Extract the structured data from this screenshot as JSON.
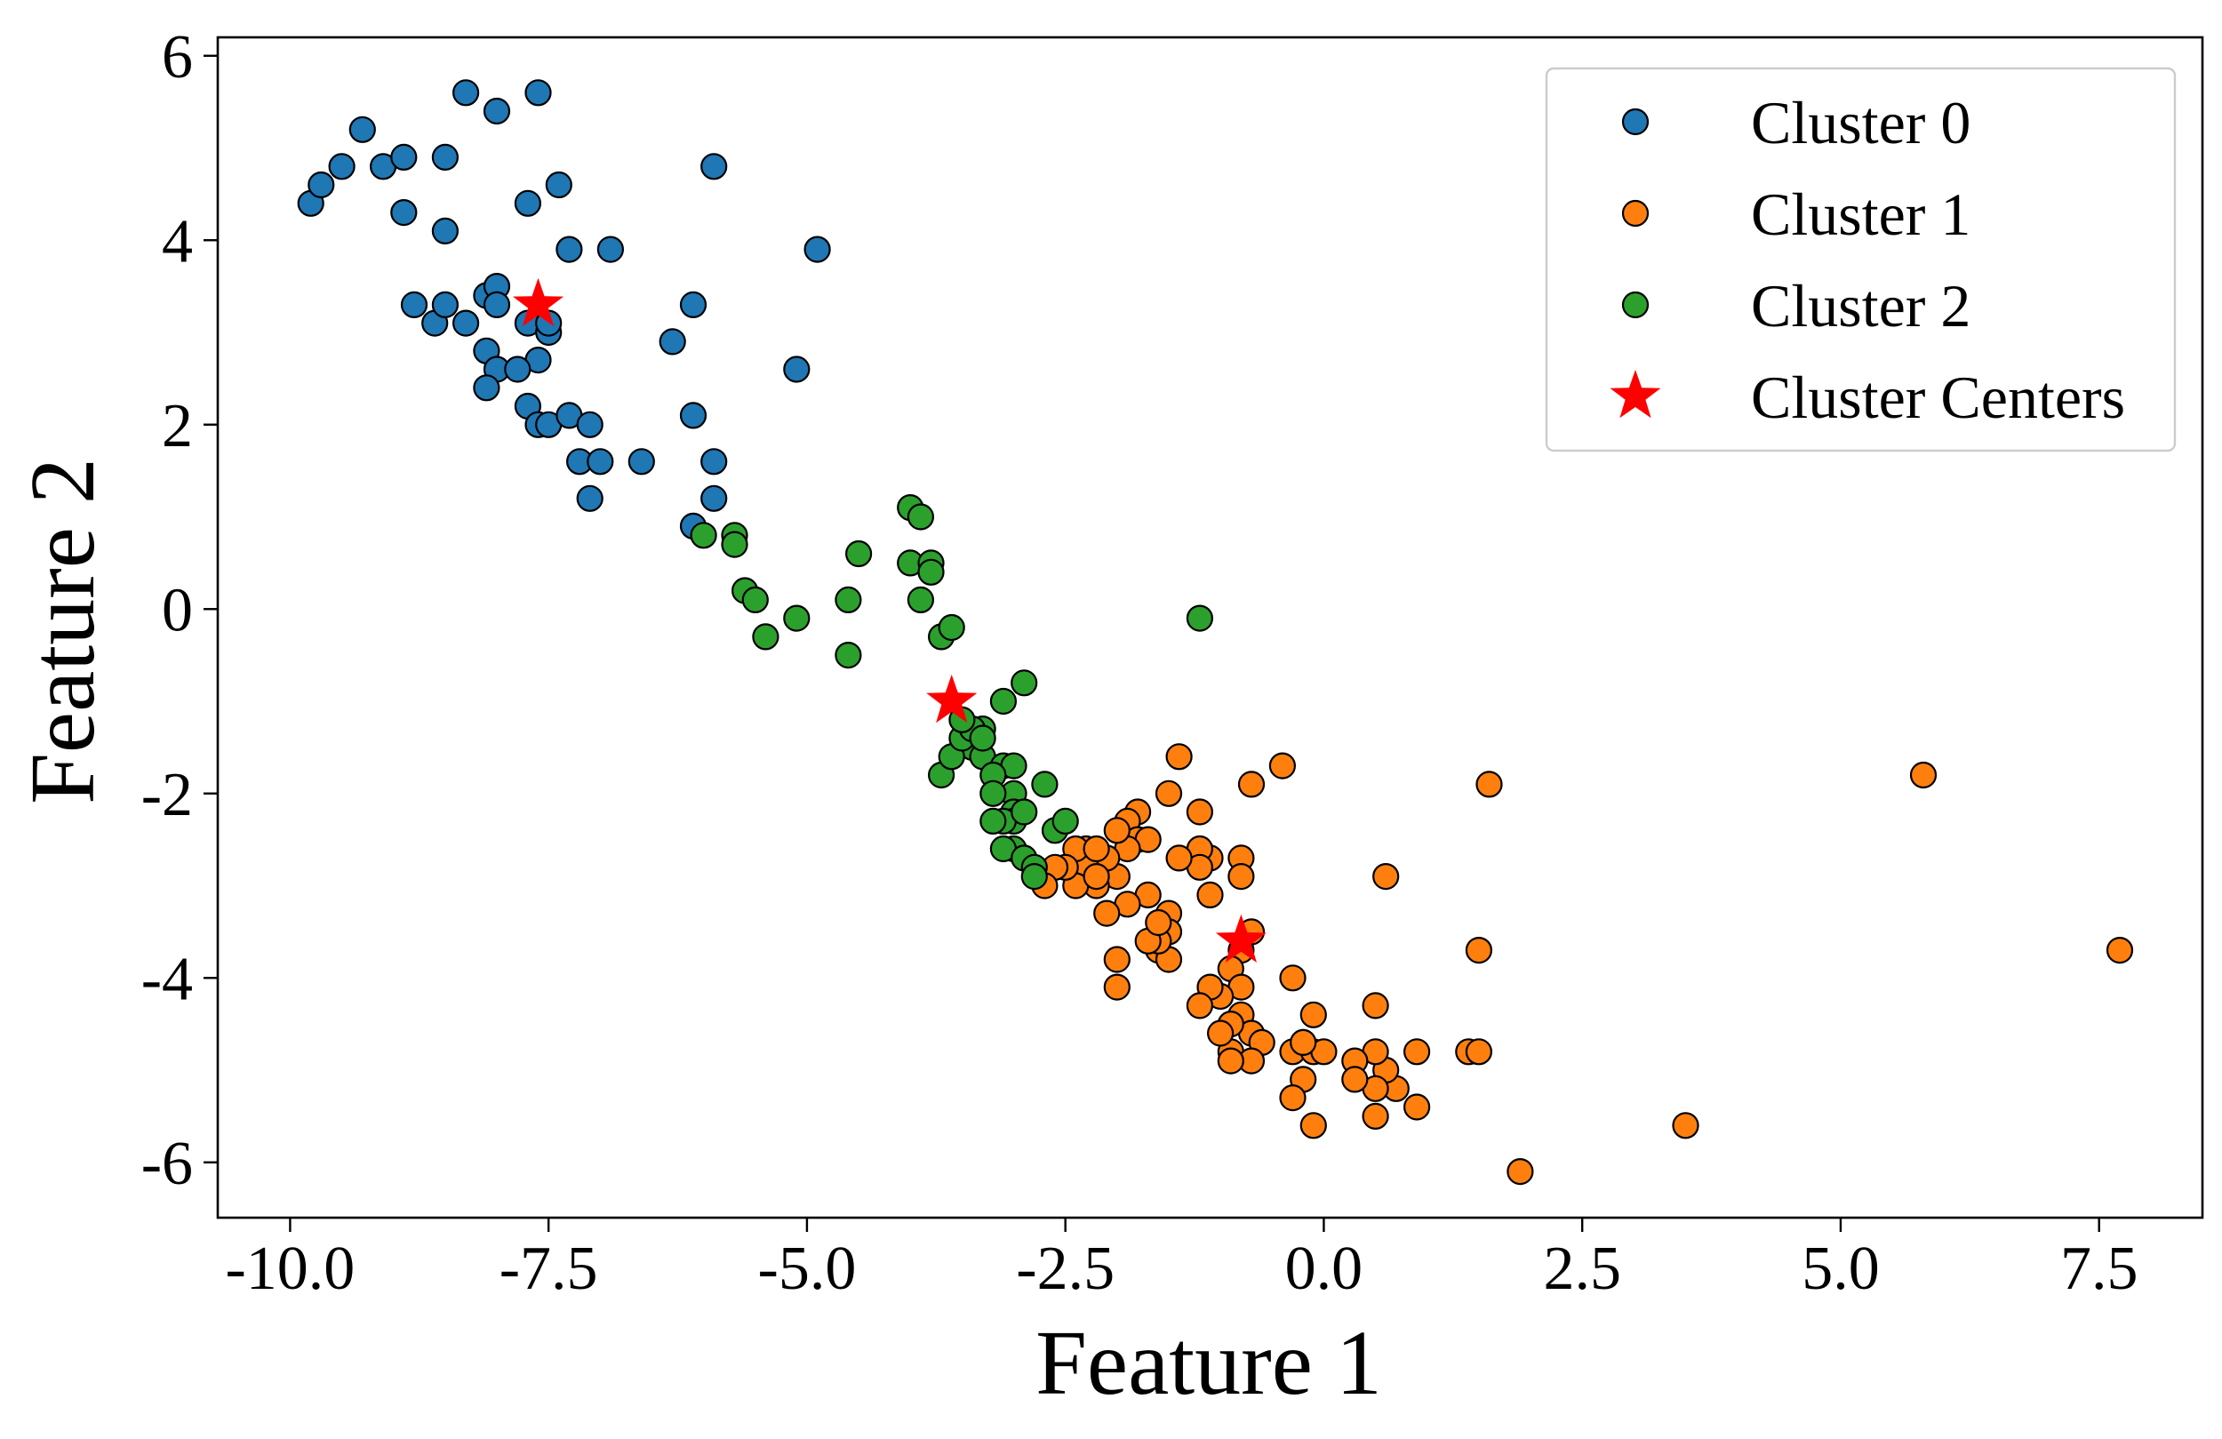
{
  "chart_data": {
    "type": "scatter",
    "xlabel": "Feature 1",
    "ylabel": "Feature 2",
    "xlim": [
      -10.7,
      8.5
    ],
    "ylim": [
      -6.6,
      6.2
    ],
    "xticks": [
      -10.0,
      -7.5,
      -5.0,
      -2.5,
      0.0,
      2.5,
      5.0,
      7.5
    ],
    "xtick_labels": [
      "-10.0",
      "-7.5",
      "-5.0",
      "-2.5",
      "0.0",
      "2.5",
      "5.0",
      "7.5"
    ],
    "yticks": [
      -6,
      -4,
      -2,
      0,
      2,
      4,
      6
    ],
    "ytick_labels": [
      "-6",
      "-4",
      "-2",
      "0",
      "2",
      "4",
      "6"
    ],
    "grid": false,
    "legend_position": "top-right",
    "series": [
      {
        "name": "Cluster 0",
        "color": "#1f77b4",
        "marker": "circle",
        "points": [
          [
            -9.8,
            4.4
          ],
          [
            -9.7,
            4.6
          ],
          [
            -9.5,
            4.8
          ],
          [
            -9.3,
            5.2
          ],
          [
            -9.1,
            4.8
          ],
          [
            -8.9,
            4.9
          ],
          [
            -8.9,
            4.3
          ],
          [
            -8.5,
            4.9
          ],
          [
            -8.5,
            4.1
          ],
          [
            -8.3,
            5.6
          ],
          [
            -8.0,
            5.4
          ],
          [
            -7.6,
            5.6
          ],
          [
            -7.7,
            4.4
          ],
          [
            -7.4,
            4.6
          ],
          [
            -7.3,
            3.9
          ],
          [
            -6.9,
            3.9
          ],
          [
            -5.9,
            4.8
          ],
          [
            -4.9,
            3.9
          ],
          [
            -8.8,
            3.3
          ],
          [
            -8.6,
            3.1
          ],
          [
            -8.5,
            3.3
          ],
          [
            -8.3,
            3.1
          ],
          [
            -8.1,
            3.4
          ],
          [
            -8.0,
            3.5
          ],
          [
            -8.0,
            3.3
          ],
          [
            -7.7,
            3.1
          ],
          [
            -7.6,
            2.7
          ],
          [
            -7.5,
            3.0
          ],
          [
            -7.5,
            3.1
          ],
          [
            -8.1,
            2.8
          ],
          [
            -8.0,
            2.6
          ],
          [
            -8.1,
            2.4
          ],
          [
            -7.8,
            2.6
          ],
          [
            -7.7,
            2.2
          ],
          [
            -7.6,
            2.0
          ],
          [
            -7.5,
            2.0
          ],
          [
            -7.3,
            2.1
          ],
          [
            -7.1,
            2.0
          ],
          [
            -7.2,
            1.6
          ],
          [
            -7.0,
            1.6
          ],
          [
            -7.1,
            1.2
          ],
          [
            -6.6,
            1.6
          ],
          [
            -6.3,
            2.9
          ],
          [
            -6.1,
            3.3
          ],
          [
            -6.1,
            2.1
          ],
          [
            -5.9,
            1.2
          ],
          [
            -5.9,
            1.6
          ],
          [
            -6.1,
            0.9
          ],
          [
            -5.1,
            2.6
          ]
        ]
      },
      {
        "name": "Cluster 1",
        "color": "#ff7f0e",
        "marker": "circle",
        "points": [
          [
            7.7,
            -3.7
          ],
          [
            5.8,
            -1.8
          ],
          [
            3.5,
            -5.6
          ],
          [
            1.9,
            -6.1
          ],
          [
            1.6,
            -1.9
          ],
          [
            1.5,
            -3.7
          ],
          [
            1.4,
            -4.8
          ],
          [
            1.5,
            -4.8
          ],
          [
            0.9,
            -4.8
          ],
          [
            0.9,
            -5.4
          ],
          [
            0.7,
            -5.2
          ],
          [
            0.6,
            -2.9
          ],
          [
            0.6,
            -5.0
          ],
          [
            0.5,
            -4.3
          ],
          [
            0.5,
            -4.8
          ],
          [
            0.5,
            -5.2
          ],
          [
            0.5,
            -5.5
          ],
          [
            0.3,
            -4.9
          ],
          [
            0.3,
            -5.1
          ],
          [
            -0.1,
            -4.4
          ],
          [
            -0.1,
            -5.6
          ],
          [
            -0.3,
            -4.0
          ],
          [
            -0.4,
            -1.7
          ],
          [
            -0.2,
            -4.7
          ],
          [
            -0.2,
            -5.1
          ],
          [
            -0.3,
            -5.3
          ],
          [
            -0.3,
            -4.8
          ],
          [
            -0.1,
            -4.8
          ],
          [
            0.0,
            -4.8
          ],
          [
            -0.2,
            -4.7
          ],
          [
            -0.7,
            -1.9
          ],
          [
            -0.7,
            -3.5
          ],
          [
            -0.8,
            -2.7
          ],
          [
            -0.8,
            -2.9
          ],
          [
            -0.8,
            -3.7
          ],
          [
            -0.9,
            -3.9
          ],
          [
            -0.8,
            -4.1
          ],
          [
            -0.8,
            -4.4
          ],
          [
            -0.7,
            -4.6
          ],
          [
            -0.9,
            -4.5
          ],
          [
            -0.6,
            -4.7
          ],
          [
            -0.9,
            -4.8
          ],
          [
            -0.7,
            -4.9
          ],
          [
            -0.9,
            -4.9
          ],
          [
            -1.0,
            -4.6
          ],
          [
            -1.0,
            -4.2
          ],
          [
            -1.1,
            -4.1
          ],
          [
            -1.2,
            -4.3
          ],
          [
            -1.1,
            -2.7
          ],
          [
            -1.1,
            -3.1
          ],
          [
            -1.2,
            -2.6
          ],
          [
            -1.2,
            -2.2
          ],
          [
            -1.2,
            -2.8
          ],
          [
            -1.4,
            -1.6
          ],
          [
            -1.5,
            -2.0
          ],
          [
            -1.4,
            -2.7
          ],
          [
            -1.5,
            -3.3
          ],
          [
            -1.5,
            -3.5
          ],
          [
            -1.6,
            -3.7
          ],
          [
            -1.5,
            -3.8
          ],
          [
            -1.6,
            -3.6
          ],
          [
            -1.7,
            -3.1
          ],
          [
            -1.7,
            -3.6
          ],
          [
            -1.6,
            -3.4
          ],
          [
            -1.8,
            -2.2
          ],
          [
            -1.9,
            -2.3
          ],
          [
            -1.8,
            -2.5
          ],
          [
            -1.7,
            -2.5
          ],
          [
            -1.9,
            -2.6
          ],
          [
            -1.9,
            -3.2
          ],
          [
            -2.0,
            -2.4
          ],
          [
            -2.0,
            -2.9
          ],
          [
            -2.1,
            -2.7
          ],
          [
            -2.1,
            -3.3
          ],
          [
            -2.2,
            -3.0
          ],
          [
            -2.0,
            -3.8
          ],
          [
            -2.0,
            -4.1
          ],
          [
            -2.3,
            -2.6
          ],
          [
            -2.3,
            -2.8
          ],
          [
            -2.4,
            -2.6
          ],
          [
            -2.4,
            -3.0
          ],
          [
            -2.5,
            -2.8
          ],
          [
            -2.6,
            -2.8
          ],
          [
            -2.7,
            -3.0
          ],
          [
            -2.2,
            -2.6
          ],
          [
            -2.2,
            -2.9
          ]
        ]
      },
      {
        "name": "Cluster 2",
        "color": "#2ca02c",
        "marker": "circle",
        "points": [
          [
            -1.2,
            -0.1
          ],
          [
            -4.0,
            1.1
          ],
          [
            -3.9,
            1.0
          ],
          [
            -4.0,
            0.5
          ],
          [
            -3.8,
            0.5
          ],
          [
            -3.8,
            0.4
          ],
          [
            -3.9,
            0.1
          ],
          [
            -3.7,
            -0.3
          ],
          [
            -3.6,
            -0.2
          ],
          [
            -5.7,
            0.8
          ],
          [
            -5.7,
            0.7
          ],
          [
            -6.0,
            0.8
          ],
          [
            -5.6,
            0.2
          ],
          [
            -5.5,
            0.1
          ],
          [
            -5.4,
            -0.3
          ],
          [
            -5.1,
            -0.1
          ],
          [
            -4.5,
            0.6
          ],
          [
            -4.6,
            0.1
          ],
          [
            -4.6,
            -0.5
          ],
          [
            -2.9,
            -0.8
          ],
          [
            -3.1,
            -1.0
          ],
          [
            -3.3,
            -1.3
          ],
          [
            -3.4,
            -1.5
          ],
          [
            -3.3,
            -1.6
          ],
          [
            -3.1,
            -1.7
          ],
          [
            -3.0,
            -1.7
          ],
          [
            -3.2,
            -1.8
          ],
          [
            -3.0,
            -2.0
          ],
          [
            -3.2,
            -2.0
          ],
          [
            -2.7,
            -1.9
          ],
          [
            -3.0,
            -2.2
          ],
          [
            -3.0,
            -2.3
          ],
          [
            -3.1,
            -2.3
          ],
          [
            -2.9,
            -2.2
          ],
          [
            -3.2,
            -2.3
          ],
          [
            -2.6,
            -2.4
          ],
          [
            -2.5,
            -2.3
          ],
          [
            -3.0,
            -2.6
          ],
          [
            -3.1,
            -2.6
          ],
          [
            -2.9,
            -2.7
          ],
          [
            -2.8,
            -2.8
          ],
          [
            -2.8,
            -2.9
          ],
          [
            -3.7,
            -1.8
          ],
          [
            -3.6,
            -1.6
          ],
          [
            -3.5,
            -1.4
          ],
          [
            -3.4,
            -1.3
          ],
          [
            -3.5,
            -1.2
          ],
          [
            -3.3,
            -1.4
          ]
        ]
      },
      {
        "name": "Cluster Centers",
        "color": "#ff0000",
        "marker": "star",
        "points": [
          [
            -7.6,
            3.3
          ],
          [
            -3.6,
            -1.0
          ],
          [
            -0.8,
            -3.6
          ]
        ]
      }
    ]
  }
}
